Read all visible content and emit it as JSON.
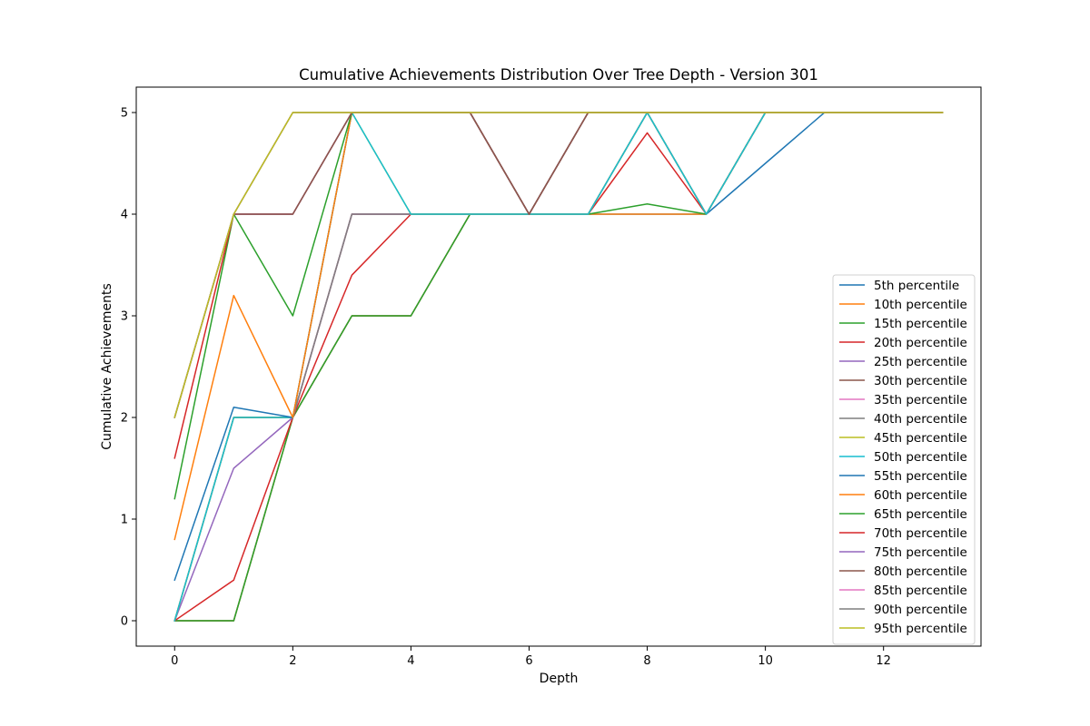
{
  "chart_data": {
    "type": "line",
    "title": "Cumulative Achievements Distribution Over Tree Depth - Version 301",
    "xlabel": "Depth",
    "ylabel": "Cumulative Achievements",
    "xlim": [
      -0.65,
      13.65
    ],
    "ylim": [
      -0.25,
      5.25
    ],
    "xticks": [
      0,
      2,
      4,
      6,
      8,
      10,
      12
    ],
    "yticks": [
      0,
      1,
      2,
      3,
      4,
      5
    ],
    "grid": false,
    "legend_position": "lower-right",
    "x": [
      0,
      1,
      2,
      3,
      4,
      5,
      6,
      7,
      8,
      9,
      10,
      11,
      12,
      13
    ],
    "series": [
      {
        "name": "5th percentile",
        "color": "#1f77b4",
        "values": [
          0,
          0,
          2,
          3,
          3,
          4,
          4,
          4,
          4,
          4,
          4.5,
          5,
          5,
          5
        ]
      },
      {
        "name": "10th percentile",
        "color": "#ff7f0e",
        "values": [
          0,
          0,
          2,
          3,
          3,
          4,
          4,
          4,
          4,
          4,
          5,
          5,
          5,
          5
        ]
      },
      {
        "name": "15th percentile",
        "color": "#2ca02c",
        "values": [
          0,
          0,
          2,
          3,
          3,
          4,
          4,
          4,
          4.1,
          4,
          5,
          5,
          5,
          5
        ]
      },
      {
        "name": "20th percentile",
        "color": "#d62728",
        "values": [
          0,
          0.4,
          2,
          3.4,
          4,
          4,
          4,
          4,
          4.8,
          4,
          5,
          5,
          5,
          5
        ]
      },
      {
        "name": "25th percentile",
        "color": "#9467bd",
        "values": [
          0,
          1.5,
          2,
          4,
          4,
          4,
          4,
          4,
          5,
          4,
          5,
          5,
          5,
          5
        ]
      },
      {
        "name": "30th percentile",
        "color": "#8c564b",
        "values": [
          0,
          2,
          2,
          4,
          4,
          4,
          4,
          4,
          5,
          4,
          5,
          5,
          5,
          5
        ]
      },
      {
        "name": "35th percentile",
        "color": "#e377c2",
        "values": [
          0,
          2,
          2,
          4,
          4,
          4,
          4,
          4,
          5,
          4,
          5,
          5,
          5,
          5
        ]
      },
      {
        "name": "40th percentile",
        "color": "#7f7f7f",
        "values": [
          0,
          2,
          2,
          4,
          4,
          4,
          4,
          4,
          5,
          4,
          5,
          5,
          5,
          5
        ]
      },
      {
        "name": "45th percentile",
        "color": "#bcbd22",
        "values": [
          0,
          2,
          2,
          5,
          4,
          4,
          4,
          4,
          5,
          4,
          5,
          5,
          5,
          5
        ]
      },
      {
        "name": "50th percentile",
        "color": "#17becf",
        "values": [
          0,
          2,
          2,
          5,
          4,
          4,
          4,
          4,
          5,
          4,
          5,
          5,
          5,
          5
        ]
      },
      {
        "name": "55th percentile",
        "color": "#1f77b4",
        "values": [
          0.4,
          2.1,
          2,
          5,
          5,
          5,
          4,
          5,
          5,
          5,
          5,
          5,
          5,
          5
        ]
      },
      {
        "name": "60th percentile",
        "color": "#ff7f0e",
        "values": [
          0.8,
          3.2,
          2,
          5,
          5,
          5,
          4,
          5,
          5,
          5,
          5,
          5,
          5,
          5
        ]
      },
      {
        "name": "65th percentile",
        "color": "#2ca02c",
        "values": [
          1.2,
          4,
          3,
          5,
          5,
          5,
          4,
          5,
          5,
          5,
          5,
          5,
          5,
          5
        ]
      },
      {
        "name": "70th percentile",
        "color": "#d62728",
        "values": [
          1.6,
          4,
          4,
          5,
          5,
          5,
          4,
          5,
          5,
          5,
          5,
          5,
          5,
          5
        ]
      },
      {
        "name": "75th percentile",
        "color": "#9467bd",
        "values": [
          2,
          4,
          4,
          5,
          5,
          5,
          4,
          5,
          5,
          5,
          5,
          5,
          5,
          5
        ]
      },
      {
        "name": "80th percentile",
        "color": "#8c564b",
        "values": [
          2,
          4,
          4,
          5,
          5,
          5,
          4,
          5,
          5,
          5,
          5,
          5,
          5,
          5
        ]
      },
      {
        "name": "85th percentile",
        "color": "#e377c2",
        "values": [
          2,
          4,
          5,
          5,
          5,
          5,
          5,
          5,
          5,
          5,
          5,
          5,
          5,
          5
        ]
      },
      {
        "name": "90th percentile",
        "color": "#7f7f7f",
        "values": [
          2,
          4,
          5,
          5,
          5,
          5,
          5,
          5,
          5,
          5,
          5,
          5,
          5,
          5
        ]
      },
      {
        "name": "95th percentile",
        "color": "#bcbd22",
        "values": [
          2,
          4,
          5,
          5,
          5,
          5,
          5,
          5,
          5,
          5,
          5,
          5,
          5,
          5
        ]
      }
    ]
  }
}
